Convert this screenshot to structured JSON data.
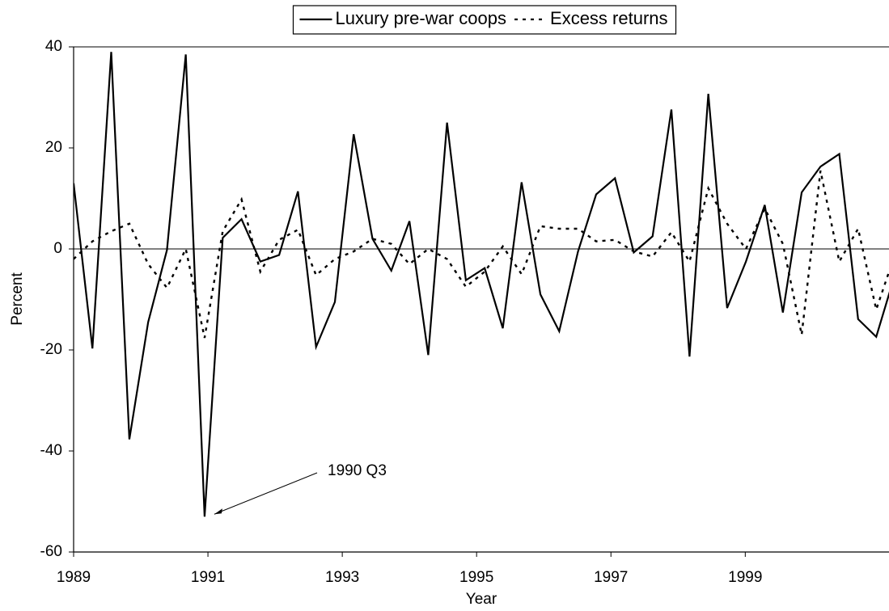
{
  "chart_data": {
    "type": "line",
    "x_label": "Year",
    "y_label": "Percent",
    "x": [
      1989.0,
      1989.28,
      1989.56,
      1989.83,
      1990.11,
      1990.39,
      1990.67,
      1990.95,
      1991.22,
      1991.5,
      1991.78,
      1992.06,
      1992.34,
      1992.61,
      1992.89,
      1993.17,
      1993.45,
      1993.73,
      1994.0,
      1994.28,
      1994.56,
      1994.84,
      1995.12,
      1995.39,
      1995.67,
      1995.95,
      1996.23,
      1996.51,
      1996.78,
      1997.06,
      1997.34,
      1997.62,
      1997.9,
      1998.17,
      1998.45,
      1998.73,
      1999.01,
      1999.29,
      1999.56,
      1999.84,
      2000.12,
      2000.4,
      2000.68,
      2000.95,
      2001.23
    ],
    "series": [
      {
        "name": "Luxury pre-war coops",
        "color": "#000000",
        "dash": "solid",
        "values": [
          13,
          -19.7,
          39,
          -37.7,
          -14.5,
          -0.2,
          38.5,
          -53,
          2.2,
          5.9,
          -2.5,
          -1.2,
          11.4,
          -19.4,
          -10.5,
          22.7,
          2,
          -4.3,
          5.5,
          -21,
          25,
          -6.2,
          -3.8,
          -15.7,
          13.2,
          -9,
          -16.3,
          -0.5,
          10.8,
          14,
          -0.7,
          2.5,
          27.6,
          -21.3,
          30.7,
          -11.7,
          -2.5,
          8.7,
          -12.6,
          11.2,
          16.3,
          18.8,
          -13.9,
          -17.4,
          -5
        ]
      },
      {
        "name": "Excess returns",
        "color": "#000000",
        "dash": "dotted",
        "values": [
          -2,
          1.5,
          3.5,
          5,
          -3,
          -7.7,
          0,
          -17.6,
          3.5,
          9.8,
          -4.5,
          1.8,
          3.8,
          -5.2,
          -2,
          -0.5,
          2,
          1,
          -3,
          0,
          -2,
          -7.5,
          -4.5,
          0.5,
          -5,
          4.5,
          4,
          4,
          1.5,
          1.8,
          -0.5,
          -1.5,
          3.3,
          -2.5,
          12,
          5,
          0,
          8,
          1,
          -17,
          15.5,
          -2.5,
          4,
          -12,
          -1
        ]
      }
    ],
    "annotation": {
      "text": "1990 Q3",
      "x": 1990.95,
      "y": -53
    },
    "xlim": [
      1989,
      2001.14
    ],
    "xticks": [
      1989,
      1991,
      1993,
      1995,
      1997,
      1999
    ],
    "ylim": [
      -60,
      40
    ],
    "yticks": [
      -60,
      -40,
      -20,
      0,
      20,
      40
    ],
    "legend": "top",
    "grid": false
  }
}
